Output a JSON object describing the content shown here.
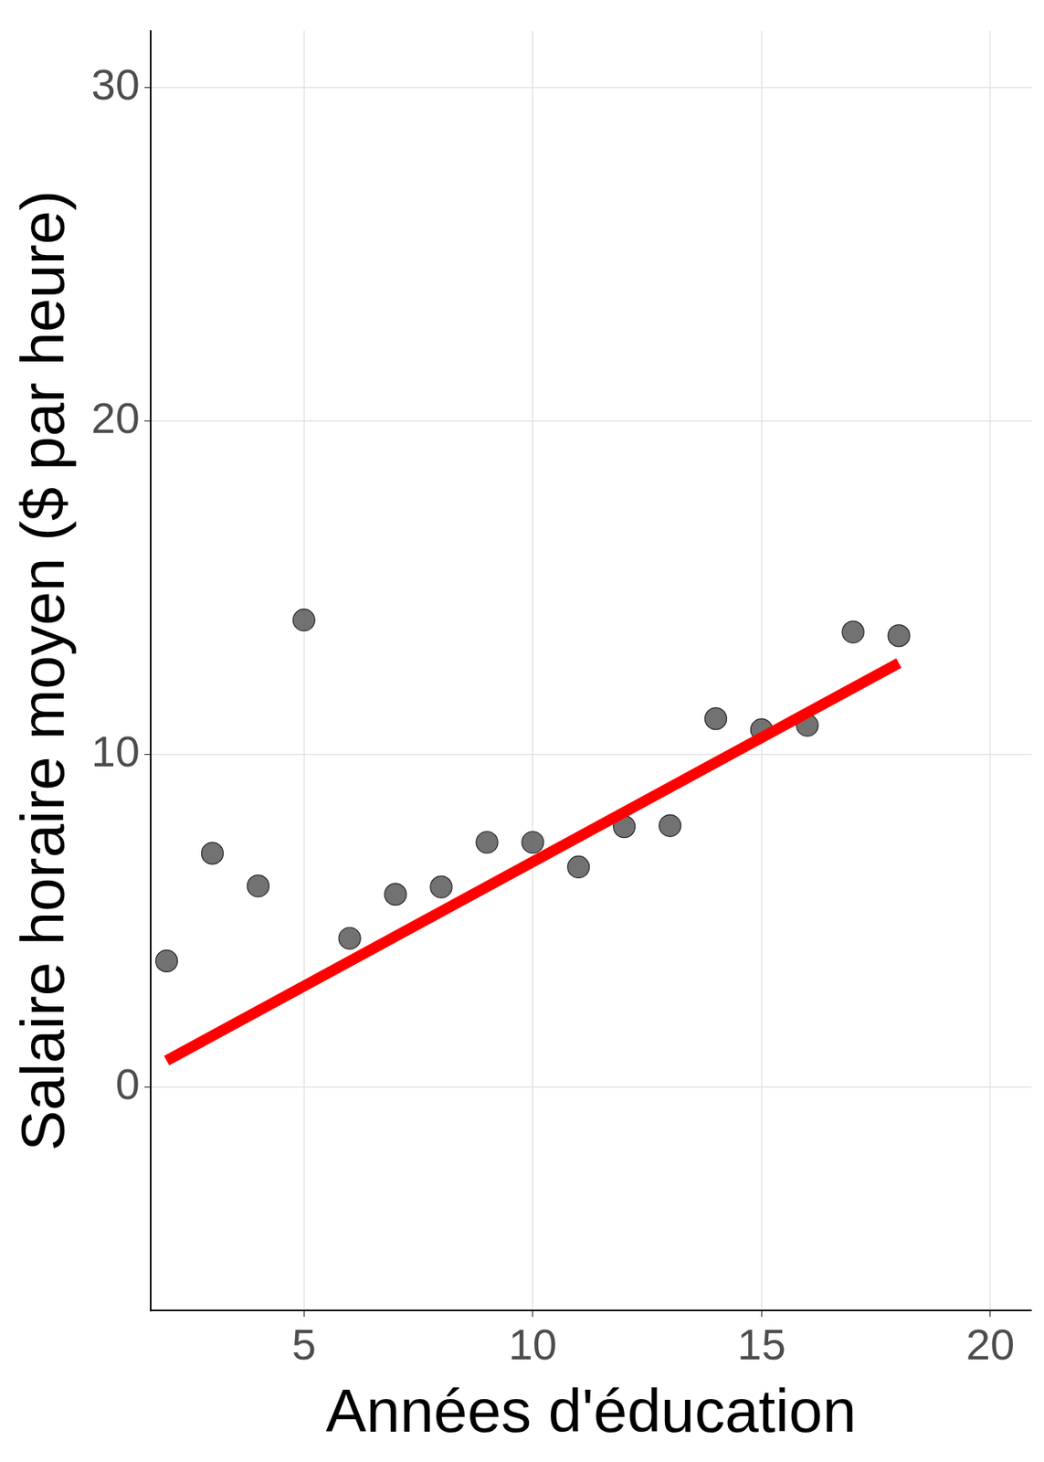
{
  "chart_data": {
    "type": "scatter",
    "x_label": "Années d'éducation",
    "y_label": "Salaire horaire moyen ($ par heure)",
    "series": [
      {
        "type": "scatter",
        "color": "#595959",
        "marker": "circle",
        "x": [
          2,
          3,
          4,
          5,
          6,
          7,
          8,
          9,
          10,
          11,
          12,
          13,
          14,
          15,
          16,
          17,
          18
        ],
        "values": [
          3.79,
          7.02,
          6.04,
          14.02,
          4.47,
          5.79,
          6.01,
          7.35,
          7.35,
          6.61,
          7.82,
          7.85,
          11.06,
          10.73,
          10.86,
          13.66,
          13.55
        ]
      },
      {
        "type": "line",
        "color": "#ff0000",
        "line_style": "solid",
        "x": [
          2,
          18
        ],
        "values": [
          0.8,
          12.73
        ]
      }
    ],
    "xlim": [
      1.65,
      20.9
    ],
    "xticks": [
      5,
      10,
      15,
      20
    ],
    "ylim": [
      -6.7,
      31.7
    ],
    "yticks": [
      0,
      10,
      20,
      30
    ],
    "grid": true
  }
}
